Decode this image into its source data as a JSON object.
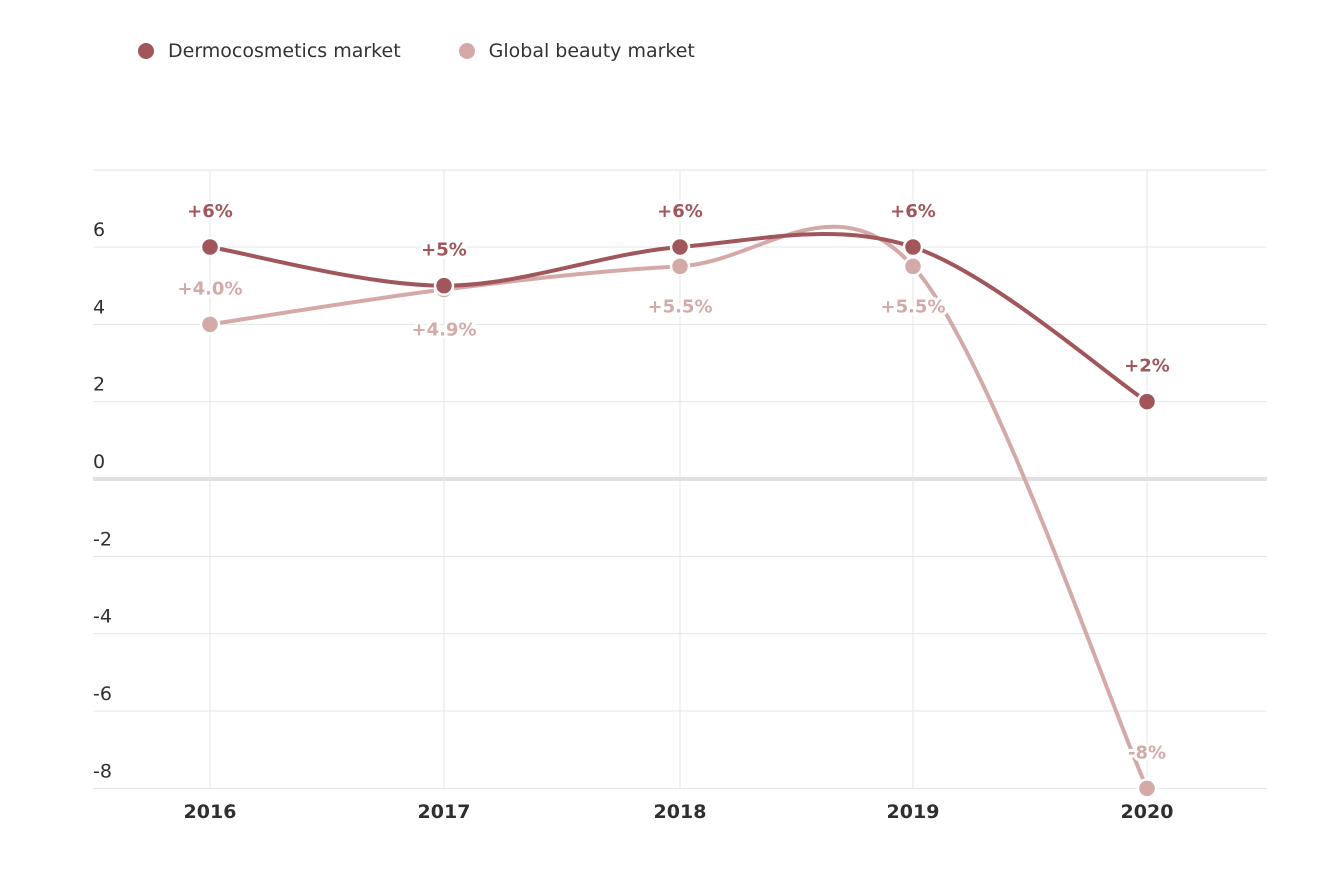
{
  "chart_data": {
    "type": "line",
    "title": "",
    "xlabel": "",
    "ylabel": "",
    "categories": [
      "2016",
      "2017",
      "2018",
      "2019",
      "2020"
    ],
    "ylim": [
      -8,
      8
    ],
    "yticks": [
      6,
      4,
      2,
      0,
      -2,
      -4,
      -6,
      -8
    ],
    "ytick_labels": [
      "6",
      "4",
      "2",
      "0",
      "-2",
      "-4",
      "-6",
      "-8"
    ],
    "grid": true,
    "legend_position": "top-left",
    "series": [
      {
        "name": "Dermocosmetics market",
        "color": "#a0565a",
        "values": [
          6,
          5,
          6,
          6,
          2
        ],
        "labels": [
          "+6%",
          "+5%",
          "+6%",
          "+6%",
          "+2%"
        ],
        "label_position": [
          "above",
          "above",
          "above",
          "above",
          "above"
        ]
      },
      {
        "name": "Global beauty market",
        "color": "#d4aaa8",
        "values": [
          4.0,
          4.9,
          5.5,
          5.5,
          -8
        ],
        "labels": [
          "+4.0%",
          "+4.9%",
          "+5.5%",
          "+5.5%",
          "-8%"
        ],
        "label_position": [
          "above",
          "below",
          "below",
          "below",
          "above"
        ]
      }
    ]
  }
}
